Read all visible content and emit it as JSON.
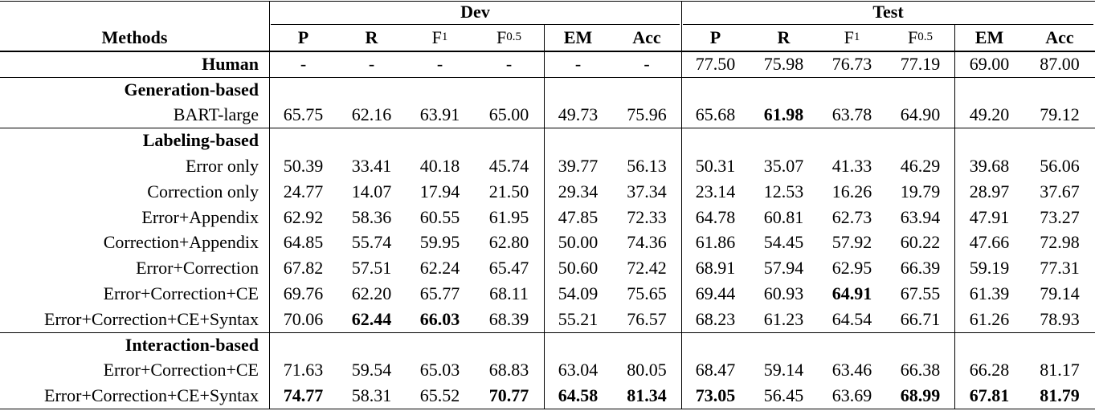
{
  "table": {
    "header": {
      "methods": "Methods",
      "groups": [
        {
          "name": "Dev",
          "columns": [
            {
              "text": "P",
              "bold": true
            },
            {
              "text": "R",
              "bold": true
            },
            {
              "text": "F",
              "sub": "1"
            },
            {
              "text": "F",
              "sub": "0.5"
            },
            {
              "text": "EM",
              "bold": true
            },
            {
              "text": "Acc",
              "bold": true
            }
          ]
        },
        {
          "name": "Test",
          "columns": [
            {
              "text": "P",
              "bold": true
            },
            {
              "text": "R",
              "bold": true
            },
            {
              "text": "F",
              "sub": "1"
            },
            {
              "text": "F",
              "sub": "0.5"
            },
            {
              "text": "EM",
              "bold": true
            },
            {
              "text": "Acc",
              "bold": true
            }
          ]
        }
      ]
    },
    "rows": [
      {
        "label": "Human",
        "bold": true,
        "rule_below": true,
        "cells": [
          "-",
          "-",
          "-",
          "-",
          "-",
          "-",
          "77.50",
          "75.98",
          "76.73",
          "77.19",
          "69.00",
          "87.00"
        ]
      },
      {
        "label": "Generation-based",
        "bold": true,
        "cells": []
      },
      {
        "label": "BART-large",
        "rule_below": true,
        "cells": [
          "65.75",
          "62.16",
          "63.91",
          "65.00",
          "49.73",
          "75.96",
          "65.68",
          {
            "text": "61.98",
            "bold": true
          },
          "63.78",
          "64.90",
          "49.20",
          "79.12"
        ]
      },
      {
        "label": "Labeling-based",
        "bold": true,
        "cells": []
      },
      {
        "label": "Error only",
        "cells": [
          "50.39",
          "33.41",
          "40.18",
          "45.74",
          "39.77",
          "56.13",
          "50.31",
          "35.07",
          "41.33",
          "46.29",
          "39.68",
          "56.06"
        ]
      },
      {
        "label": "Correction only",
        "cells": [
          "24.77",
          "14.07",
          "17.94",
          "21.50",
          "29.34",
          "37.34",
          "23.14",
          "12.53",
          "16.26",
          "19.79",
          "28.97",
          "37.67"
        ]
      },
      {
        "label": "Error+Appendix",
        "cells": [
          "62.92",
          "58.36",
          "60.55",
          "61.95",
          "47.85",
          "72.33",
          "64.78",
          "60.81",
          "62.73",
          "63.94",
          "47.91",
          "73.27"
        ]
      },
      {
        "label": "Correction+Appendix",
        "cells": [
          "64.85",
          "55.74",
          "59.95",
          "62.80",
          "50.00",
          "74.36",
          "61.86",
          "54.45",
          "57.92",
          "60.22",
          "47.66",
          "72.98"
        ]
      },
      {
        "label": "Error+Correction",
        "cells": [
          "67.82",
          "57.51",
          "62.24",
          "65.47",
          "50.60",
          "72.42",
          "68.91",
          "57.94",
          "62.95",
          "66.39",
          "59.19",
          "77.31"
        ]
      },
      {
        "label": "Error+Correction+CE",
        "cells": [
          "69.76",
          "62.20",
          "65.77",
          "68.11",
          "54.09",
          "75.65",
          "69.44",
          "60.93",
          {
            "text": "64.91",
            "bold": true
          },
          "67.55",
          "61.39",
          "79.14"
        ]
      },
      {
        "label": "Error+Correction+CE+Syntax",
        "rule_below": true,
        "cells": [
          "70.06",
          {
            "text": "62.44",
            "bold": true
          },
          {
            "text": "66.03",
            "bold": true
          },
          "68.39",
          "55.21",
          "76.57",
          "68.23",
          "61.23",
          "64.54",
          "66.71",
          "61.26",
          "78.93"
        ]
      },
      {
        "label": "Interaction-based",
        "bold": true,
        "cells": []
      },
      {
        "label": "Error+Correction+CE",
        "cells": [
          "71.63",
          "59.54",
          "65.03",
          "68.83",
          "63.04",
          "80.05",
          "68.47",
          "59.14",
          "63.46",
          "66.38",
          "66.28",
          "81.17"
        ]
      },
      {
        "label": "Error+Correction+CE+Syntax",
        "rule_below": true,
        "cells": [
          {
            "text": "74.77",
            "bold": true
          },
          "58.31",
          "65.52",
          {
            "text": "70.77",
            "bold": true
          },
          {
            "text": "64.58",
            "bold": true
          },
          {
            "text": "81.34",
            "bold": true
          },
          {
            "text": "73.05",
            "bold": true
          },
          "56.45",
          "63.69",
          {
            "text": "68.99",
            "bold": true
          },
          {
            "text": "67.81",
            "bold": true
          },
          {
            "text": "81.79",
            "bold": true
          }
        ]
      }
    ]
  }
}
